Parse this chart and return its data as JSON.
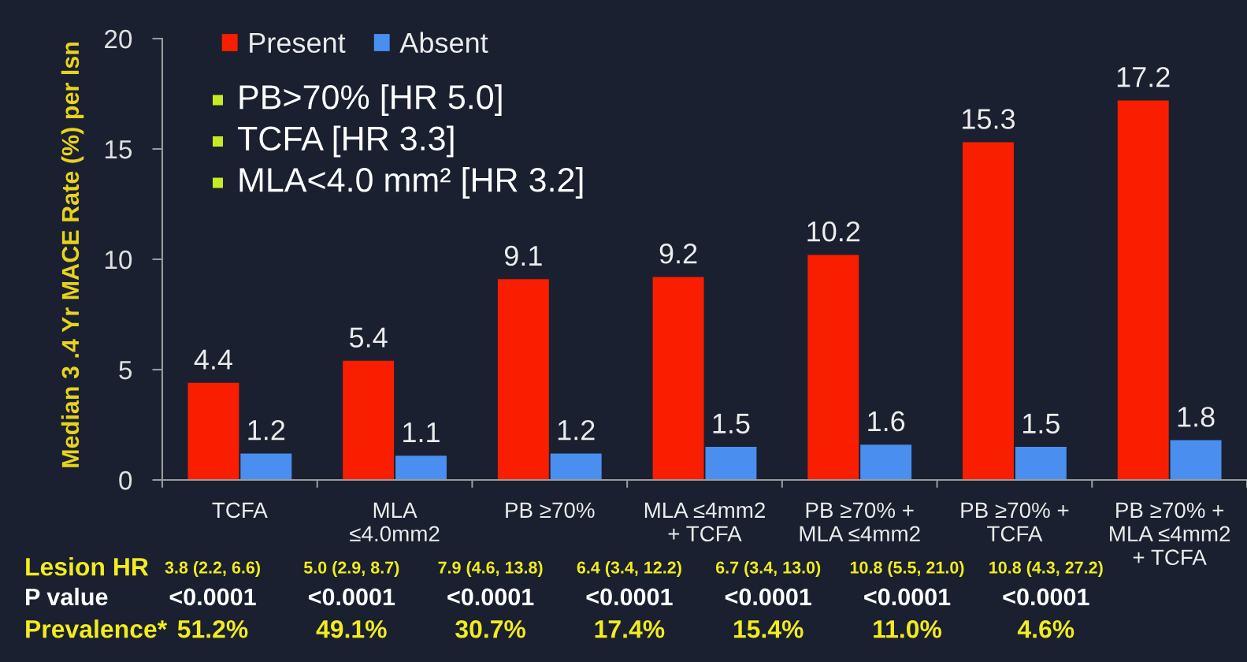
{
  "chart_data": {
    "type": "bar",
    "ylabel": "Median 3 .4 Yr MACE Rate (%) per lsn",
    "categories": [
      "TCFA",
      "MLA\n≤4.0mm2",
      "PB ≥70%",
      "MLA ≤4mm2\n+ TCFA",
      "PB ≥70% +\nMLA ≤4mm2",
      "PB ≥70% +\nTCFA",
      "PB ≥70% +\nMLA ≤4mm2\n+ TCFA"
    ],
    "series": [
      {
        "name": "Present",
        "color": "#fa1e00",
        "values": [
          4.4,
          5.4,
          9.1,
          9.2,
          10.2,
          15.3,
          17.2
        ]
      },
      {
        "name": "Absent",
        "color": "#4a8ff0",
        "values": [
          1.2,
          1.1,
          1.2,
          1.5,
          1.6,
          1.5,
          1.8
        ]
      }
    ],
    "ylim": [
      0,
      20
    ],
    "yticks": [
      0,
      5,
      10,
      15,
      20
    ],
    "legend": "top left",
    "data_labels": true,
    "annotations": [
      "PB>70% [HR 5.0]",
      "TCFA [HR 3.3]",
      "MLA<4.0 mm² [HR 3.2]",
      "Lesion HR",
      "3.8 (2.2, 6.6)",
      "5.0 (2.9, 8.7)",
      "7.9 (4.6, 13.8)",
      "6.4 (3.4, 12.2)",
      "6.7 (3.4, 13.0)",
      "10.8 (5.5, 21.0)",
      "10.8 (4.3, 27.2)",
      "P value",
      "<0.0001",
      "<0.0001",
      "<0.0001",
      "<0.0001",
      "<0.0001",
      "<0.0001",
      "<0.0001",
      "Prevalence*",
      "51.2%",
      "49.1%",
      "30.7%",
      "17.4%",
      "15.4%",
      "11.0%",
      "4.6%"
    ]
  }
}
